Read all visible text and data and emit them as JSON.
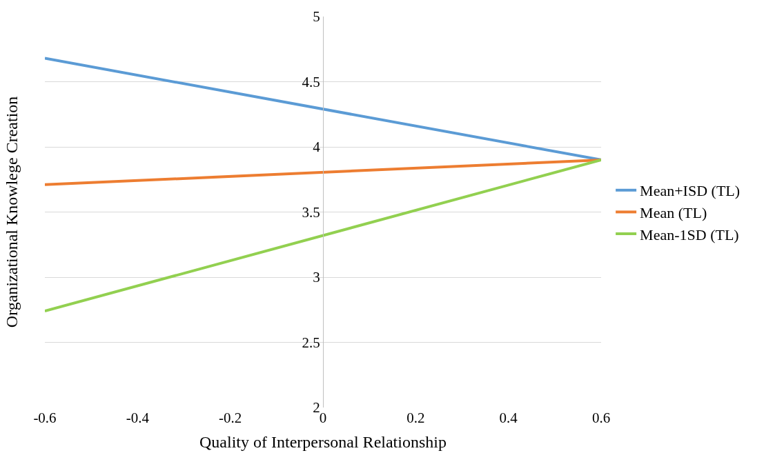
{
  "chart_data": {
    "type": "line",
    "xlabel": "Quality of Interpersonal Relationship",
    "ylabel": "Organizational Knowlege Creation",
    "x": [
      -0.6,
      0.6
    ],
    "series": [
      {
        "name": "Mean+ISD (TL)",
        "color": "#5b9bd5",
        "values": [
          4.68,
          3.9
        ]
      },
      {
        "name": "Mean (TL)",
        "color": "#ed7d31",
        "values": [
          3.71,
          3.9
        ]
      },
      {
        "name": "Mean-1SD (TL)",
        "color": "#92d050",
        "values": [
          2.74,
          3.9
        ]
      }
    ],
    "xlim": [
      -0.6,
      0.6
    ],
    "xticks": [
      -0.6,
      -0.4,
      -0.2,
      0,
      0.2,
      0.4,
      0.6
    ],
    "ylim": [
      2,
      5
    ],
    "yticks": [
      2,
      2.5,
      3,
      3.5,
      4,
      4.5,
      5
    ],
    "grid": "y",
    "legend": "right",
    "marker": "none",
    "line_style": "solid"
  }
}
